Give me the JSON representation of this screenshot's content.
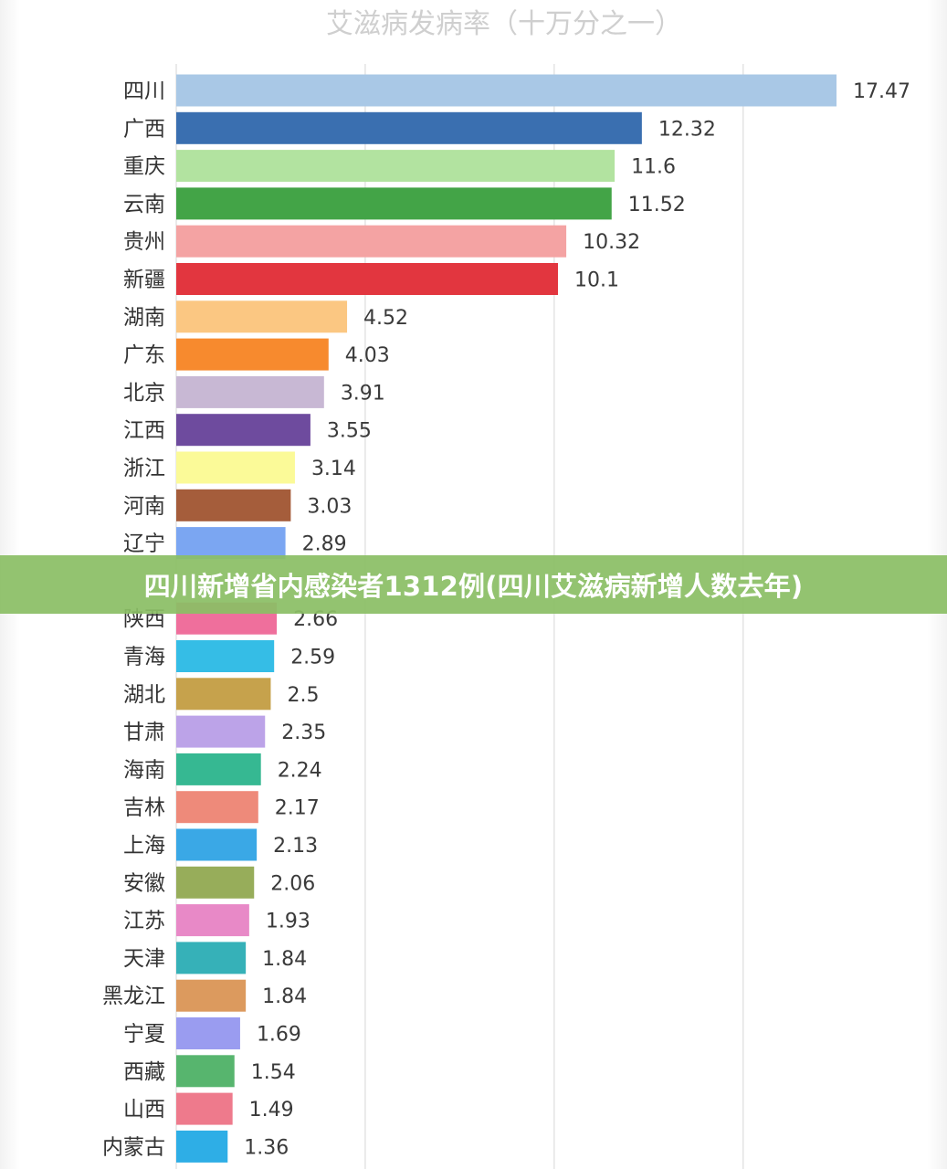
{
  "banner": {
    "text": "四川新增省内感染者1312例(四川艾滋病新增人数去年)"
  },
  "colors": {
    "banner": "#8bbe65",
    "grid": "#e4e4e4"
  },
  "chart_data": {
    "type": "bar",
    "orientation": "horizontal",
    "title": "艾滋病发病率（十万分之一）",
    "xlabel": "",
    "ylabel": "",
    "xlim": [
      0,
      17.47
    ],
    "grid": true,
    "legend": "none",
    "categories": [
      "四川",
      "广西",
      "重庆",
      "云南",
      "贵州",
      "新疆",
      "湖南",
      "广东",
      "北京",
      "江西",
      "浙江",
      "河南",
      "辽宁",
      "",
      "陕西",
      "青海",
      "湖北",
      "甘肃",
      "海南",
      "吉林",
      "上海",
      "安徽",
      "江苏",
      "天津",
      "黑龙江",
      "宁夏",
      "西藏",
      "山西",
      "内蒙古"
    ],
    "values": [
      17.47,
      12.32,
      11.6,
      11.52,
      10.32,
      10.1,
      4.52,
      4.03,
      3.91,
      3.55,
      3.14,
      3.03,
      2.89,
      null,
      2.66,
      2.59,
      2.5,
      2.35,
      2.24,
      2.17,
      2.13,
      2.06,
      1.93,
      1.84,
      1.84,
      1.69,
      1.54,
      1.49,
      1.36
    ],
    "value_labels": [
      "17.47",
      "12.32",
      "11.6",
      "11.52",
      "10.32",
      "10.1",
      "4.52",
      "4.03",
      "3.91",
      "3.55",
      "3.14",
      "3.03",
      "2.89",
      "",
      "2.66",
      "2.59",
      "2.5",
      "2.35",
      "2.24",
      "2.17",
      "2.13",
      "2.06",
      "1.93",
      "1.84",
      "1.84",
      "1.69",
      "1.54",
      "1.49",
      "1.36"
    ],
    "bar_colors": [
      "#a9c8e6",
      "#3a6fb0",
      "#b2e3a0",
      "#43a447",
      "#f4a3a3",
      "#e2363f",
      "#fbc782",
      "#f78a2e",
      "#c8b8d4",
      "#6e4b9e",
      "#fbfa98",
      "#a55d3b",
      "#7ba6f2",
      "#5aa67a",
      "#ef6f9c",
      "#35bde6",
      "#c6a24c",
      "#bca3e8",
      "#36b892",
      "#ee8a7a",
      "#3aa8e6",
      "#97ad5a",
      "#e889c7",
      "#36b1b8",
      "#dc9a5e",
      "#9a9cf0",
      "#57b56e",
      "#ee7a8c",
      "#2eaee6"
    ]
  }
}
